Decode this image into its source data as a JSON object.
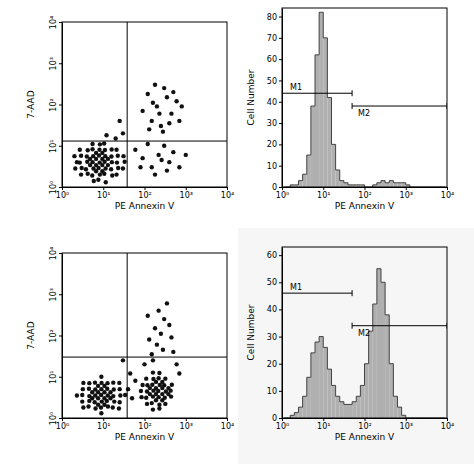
{
  "chart_data": [
    {
      "type": "scatter",
      "x_label": "PE Annexin V",
      "y_label": "7-AAD",
      "log": true,
      "color": "#111111",
      "marker": "dot",
      "xlim": [
        1,
        10000
      ],
      "ylim": [
        1,
        10000
      ],
      "xticks": [
        {
          "value": 1,
          "label": "10⁰"
        },
        {
          "value": 10,
          "label": "10¹"
        },
        {
          "value": 100,
          "label": "10²"
        },
        {
          "value": 1000,
          "label": "10³"
        },
        {
          "value": 10000,
          "label": "10⁴"
        }
      ],
      "yticks": [
        {
          "value": 1,
          "label": "10⁰"
        },
        {
          "value": 10,
          "label": "10¹"
        },
        {
          "value": 100,
          "label": "10²"
        },
        {
          "value": 1000,
          "label": "10³"
        },
        {
          "value": 10000,
          "label": "10⁴"
        }
      ],
      "quadrant": {
        "x": 38,
        "y": 13
      },
      "x": [
        5.9,
        7.6,
        11.5,
        2.9,
        4.2,
        5.4,
        8.3,
        10.6,
        16.5,
        21,
        2.1,
        3,
        3.8,
        5.8,
        7.7,
        11.4,
        15.5,
        23,
        30,
        2.3,
        2.7,
        4.1,
        5.5,
        8.2,
        10.8,
        16.2,
        21.5,
        33,
        2,
        2.9,
        4,
        5.7,
        7.9,
        11.2,
        15.8,
        22.5,
        31,
        2.7,
        4.2,
        5.5,
        8.1,
        11,
        16,
        21,
        5.5,
        8.3,
        10.5,
        6.7,
        9.5,
        6.7,
        9.5,
        13,
        4.8,
        13,
        9.5,
        6.7,
        9.5,
        6.7,
        4.8,
        120,
        200,
        300,
        450,
        150,
        250,
        600,
        350,
        90,
        180,
        500,
        700,
        280,
        400,
        160,
        230,
        800,
        130,
        60,
        90,
        150,
        220,
        300,
        400,
        120,
        500,
        700,
        180,
        80,
        260,
        350,
        1000,
        20,
        30,
        25,
        12
      ],
      "values": [
        1.4,
        1.5,
        1.3,
        2,
        2.1,
        1.9,
        2,
        2.1,
        1.9,
        2,
        2.8,
        2.9,
        2.7,
        2.8,
        2.9,
        2.8,
        2.7,
        2.9,
        2.8,
        4,
        3.9,
        4.1,
        4,
        3.9,
        4.1,
        4,
        3.9,
        4.1,
        5.6,
        5.7,
        5.5,
        5.6,
        5.8,
        5.6,
        5.5,
        5.7,
        5.6,
        8,
        7.8,
        8.2,
        8,
        7.9,
        8.1,
        8,
        11,
        10.8,
        11.3,
        3.4,
        3.4,
        4.8,
        4.8,
        4.8,
        3.4,
        3.4,
        2.4,
        2.4,
        6.7,
        6.7,
        4.8,
        180,
        90,
        250,
        60,
        40,
        30,
        120,
        150,
        70,
        300,
        200,
        40,
        22,
        35,
        110,
        60,
        90,
        25,
        8,
        5,
        3,
        6,
        10,
        4,
        11,
        7,
        3,
        2,
        3,
        4.5,
        2.5,
        6,
        15,
        20,
        40,
        18
      ]
    },
    {
      "type": "histogram",
      "x_label": "PE Annexin V",
      "y_label": "Cell Number",
      "log": "x",
      "color": "#b0b0b0",
      "xlim": [
        1,
        10000
      ],
      "ylim": [
        0,
        84
      ],
      "xticks": [
        {
          "value": 1,
          "label": "10⁰"
        },
        {
          "value": 10,
          "label": "10¹"
        },
        {
          "value": 100,
          "label": "10²"
        },
        {
          "value": 1000,
          "label": "10³"
        },
        {
          "value": 10000,
          "label": "10⁴"
        }
      ],
      "yticks": [
        0,
        10,
        20,
        30,
        40,
        50,
        60,
        70,
        80
      ],
      "bins": [
        1,
        1.259,
        1.585,
        1.995,
        2.512,
        3.162,
        3.981,
        5.012,
        6.31,
        7.943,
        10,
        12.59,
        15.85,
        19.95,
        25.12,
        31.62,
        39.81,
        50.12,
        63.1,
        79.43,
        100,
        125.9,
        158.5,
        199.5,
        251.2,
        316.2,
        398.1,
        501.2,
        631,
        794.3,
        1000,
        1259,
        1585,
        1995,
        2512,
        3162,
        3981,
        5012,
        6310,
        7943,
        10000
      ],
      "values": [
        0,
        0,
        1,
        1,
        3,
        6,
        15,
        38,
        62,
        82,
        70,
        42,
        20,
        8,
        3,
        2,
        1,
        1,
        1,
        1,
        0,
        0,
        1,
        2,
        3,
        2,
        3,
        2,
        2,
        2,
        1,
        0,
        0,
        0,
        0,
        0,
        0,
        0,
        0,
        0
      ],
      "markers": [
        {
          "label": "M1",
          "range": [
            1,
            50
          ],
          "y": 44
        },
        {
          "label": "M2",
          "range": [
            50,
            10000
          ],
          "y": 38
        }
      ]
    },
    {
      "type": "scatter",
      "x_label": "PE Annexin V",
      "y_label": "7-AAD",
      "log": true,
      "color": "#111111",
      "marker": "dot",
      "xlim": [
        1,
        10000
      ],
      "ylim": [
        1,
        10000
      ],
      "xticks": [
        {
          "value": 1,
          "label": "10⁰"
        },
        {
          "value": 10,
          "label": "10¹"
        },
        {
          "value": 100,
          "label": "10²"
        },
        {
          "value": 1000,
          "label": "10³"
        },
        {
          "value": 10000,
          "label": "10⁴"
        }
      ],
      "yticks": [
        {
          "value": 1,
          "label": "10⁰"
        },
        {
          "value": 10,
          "label": "10¹"
        },
        {
          "value": 100,
          "label": "10²"
        },
        {
          "value": 1000,
          "label": "10³"
        },
        {
          "value": 10000,
          "label": "10⁴"
        }
      ],
      "quadrant": {
        "x": 38,
        "y": 30
      },
      "x": [
        9,
        3.3,
        4.4,
        6.5,
        8.8,
        13,
        17,
        24,
        3.1,
        4.6,
        6.2,
        9.2,
        12.2,
        18.5,
        25,
        2.3,
        3.1,
        4.6,
        6.4,
        8.9,
        12.9,
        17.5,
        26,
        34,
        3.2,
        4.5,
        6.4,
        9,
        12.5,
        18,
        25,
        3.3,
        4.6,
        6.3,
        9.1,
        12.7,
        17.5,
        24.5,
        9,
        5.4,
        7.5,
        10.7,
        15,
        5.4,
        7.5,
        10.7,
        15,
        7.5,
        10.7,
        7.5,
        10.7,
        160,
        230,
        115,
        150,
        230,
        320,
        85,
        110,
        160,
        220,
        310,
        440,
        82,
        115,
        165,
        215,
        330,
        430,
        90,
        118,
        155,
        235,
        300,
        460,
        110,
        165,
        220,
        320,
        160,
        230,
        135,
        190,
        270,
        135,
        190,
        270,
        380,
        190,
        270,
        190,
        270,
        380,
        100,
        150,
        200,
        250,
        180,
        300,
        350,
        220,
        130,
        400,
        500,
        120,
        160,
        280,
        450,
        600,
        700,
        40,
        50,
        60,
        45,
        30
      ],
      "values": [
        1.3,
        1.8,
        1.9,
        1.7,
        1.8,
        1.9,
        1.8,
        1.7,
        2.5,
        2.6,
        2.4,
        2.5,
        2.6,
        2.5,
        2.4,
        3.5,
        3.6,
        3.4,
        3.5,
        3.6,
        3.5,
        3.4,
        3.5,
        3.6,
        5,
        5.1,
        4.9,
        5,
        5.1,
        4.9,
        5,
        7.1,
        7,
        7.2,
        7.1,
        7,
        7.2,
        7.1,
        10,
        3,
        3,
        3,
        3,
        4.2,
        4.2,
        4.2,
        4.2,
        6,
        6,
        2.1,
        2.1,
        1.6,
        1.7,
        2.2,
        2.3,
        2.1,
        2.2,
        3.2,
        3.1,
        3.3,
        3.2,
        3.1,
        3.3,
        4.5,
        4.4,
        4.6,
        4.5,
        4.4,
        4.6,
        6.3,
        6.2,
        6.4,
        6.3,
        6.2,
        6.4,
        9,
        8.8,
        9.2,
        9,
        12.6,
        12.3,
        3.8,
        3.8,
        3.8,
        5.3,
        5.3,
        5.3,
        5.3,
        2.7,
        2.7,
        7.5,
        7.5,
        3.8,
        20,
        35,
        60,
        110,
        150,
        250,
        600,
        400,
        80,
        180,
        40,
        300,
        25,
        45,
        90,
        20,
        12,
        5,
        3,
        8,
        12,
        25
      ]
    },
    {
      "type": "histogram",
      "x_label": "PE Annexin V",
      "y_label": "Cell Number",
      "log": "x",
      "color": "#b0b0b0",
      "xlim": [
        1,
        10000
      ],
      "ylim": [
        0,
        63
      ],
      "xticks": [
        {
          "value": 1,
          "label": "10⁰"
        },
        {
          "value": 10,
          "label": "10¹"
        },
        {
          "value": 100,
          "label": "10²"
        },
        {
          "value": 1000,
          "label": "10³"
        },
        {
          "value": 10000,
          "label": "10⁴"
        }
      ],
      "yticks": [
        0,
        10,
        20,
        30,
        40,
        50,
        60
      ],
      "bins": [
        1,
        1.259,
        1.585,
        1.995,
        2.512,
        3.162,
        3.981,
        5.012,
        6.31,
        7.943,
        10,
        12.59,
        15.85,
        19.95,
        25.12,
        31.62,
        39.81,
        50.12,
        63.1,
        79.43,
        100,
        125.9,
        158.5,
        199.5,
        251.2,
        316.2,
        398.1,
        501.2,
        631,
        794.3,
        1000,
        1259,
        1585,
        1995,
        2512,
        3162,
        3981,
        5012,
        6310,
        7943,
        10000
      ],
      "values": [
        0,
        0,
        1,
        2,
        4,
        8,
        15,
        24,
        28,
        30,
        26,
        18,
        12,
        8,
        6,
        5,
        5,
        6,
        8,
        12,
        20,
        32,
        42,
        55,
        50,
        38,
        20,
        8,
        4,
        1,
        0,
        0,
        0,
        0,
        0,
        0,
        0,
        0,
        0,
        0
      ],
      "markers": [
        {
          "label": "M1",
          "range": [
            1,
            50
          ],
          "y": 46
        },
        {
          "label": "M2",
          "range": [
            50,
            10000
          ],
          "y": 34
        }
      ]
    }
  ]
}
